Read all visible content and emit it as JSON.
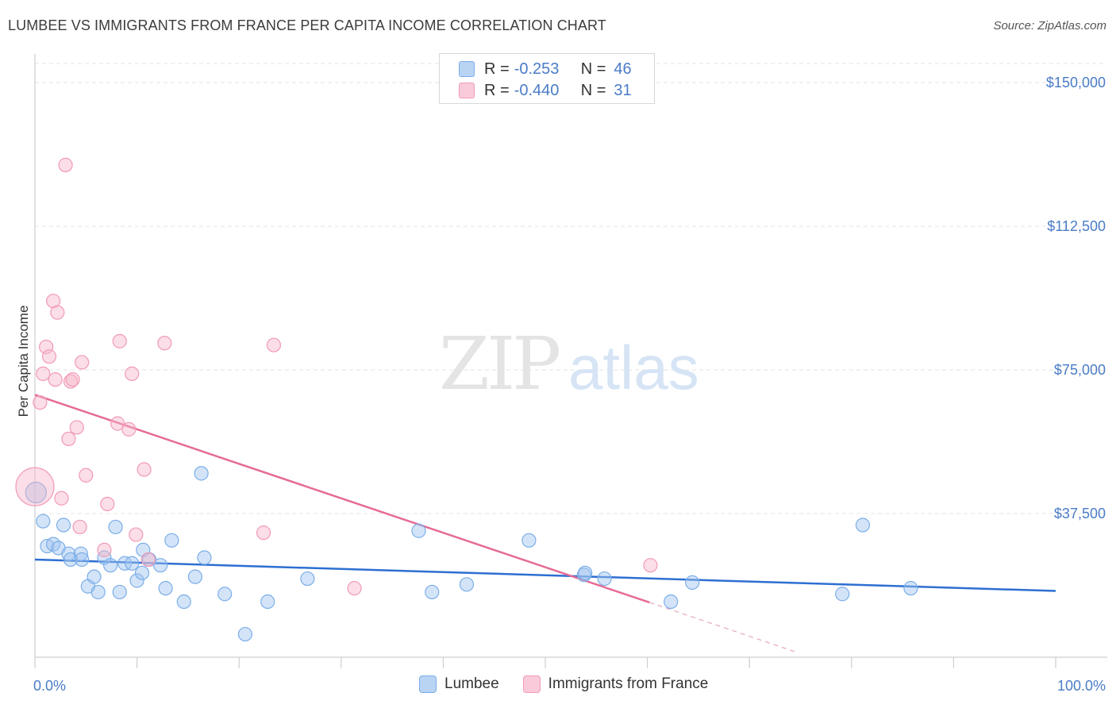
{
  "title": "LUMBEE VS IMMIGRANTS FROM FRANCE PER CAPITA INCOME CORRELATION CHART",
  "source": "Source: ZipAtlas.com",
  "watermark": {
    "zip": "ZIP",
    "atlas": "atlas"
  },
  "colors": {
    "blue": "#7aaee8",
    "blue_fill": "rgba(160,196,240,0.45)",
    "blue_line": "#2d6fd1",
    "pink": "#f19ab6",
    "pink_fill": "rgba(246,182,202,0.45)",
    "pink_line": "#e56b96",
    "tick_text": "#4a7cc7"
  },
  "legend_top": [
    {
      "r_label": "R =",
      "r_value": "-0.253",
      "n_label": "N =",
      "n_value": "46"
    },
    {
      "r_label": "R =",
      "r_value": "-0.440",
      "n_label": "N =",
      "n_value": "31"
    }
  ],
  "legend_bottom": [
    {
      "label": "Lumbee"
    },
    {
      "label": "Immigrants from France"
    }
  ],
  "chart_data": {
    "type": "scatter",
    "title": "LUMBEE VS IMMIGRANTS FROM FRANCE PER CAPITA INCOME CORRELATION CHART",
    "xlabel": "",
    "ylabel": "Per Capita Income",
    "xlim": [
      0,
      100
    ],
    "ylim": [
      0,
      155000
    ],
    "x_tick_labels": [
      "0.0%",
      "100.0%"
    ],
    "y_ticks": [
      37500,
      75000,
      112500,
      150000
    ],
    "y_tick_labels": [
      "$37,500",
      "$75,000",
      "$112,500",
      "$150,000"
    ],
    "grid": "horizontal dashed",
    "series": [
      {
        "name": "Lumbee",
        "points": [
          [
            0.1,
            43000
          ],
          [
            0.8,
            35500
          ],
          [
            1.2,
            29000
          ],
          [
            1.8,
            29500
          ],
          [
            2.3,
            28500
          ],
          [
            2.8,
            34500
          ],
          [
            3.3,
            27000
          ],
          [
            3.5,
            25500
          ],
          [
            4.5,
            27000
          ],
          [
            4.6,
            25500
          ],
          [
            5.2,
            18500
          ],
          [
            5.8,
            21000
          ],
          [
            6.2,
            17000
          ],
          [
            6.8,
            26000
          ],
          [
            7.4,
            24000
          ],
          [
            7.9,
            34000
          ],
          [
            8.3,
            17000
          ],
          [
            8.8,
            24500
          ],
          [
            9.5,
            24500
          ],
          [
            10.0,
            20000
          ],
          [
            10.5,
            22000
          ],
          [
            10.6,
            28000
          ],
          [
            11.2,
            25500
          ],
          [
            12.3,
            24000
          ],
          [
            12.8,
            18000
          ],
          [
            13.4,
            30500
          ],
          [
            14.6,
            14500
          ],
          [
            15.7,
            21000
          ],
          [
            16.3,
            48000
          ],
          [
            16.6,
            26000
          ],
          [
            18.6,
            16500
          ],
          [
            20.6,
            6000
          ],
          [
            22.8,
            14500
          ],
          [
            26.7,
            20500
          ],
          [
            37.6,
            33000
          ],
          [
            38.9,
            17000
          ],
          [
            42.3,
            19000
          ],
          [
            48.4,
            30500
          ],
          [
            53.8,
            21500
          ],
          [
            53.9,
            22000
          ],
          [
            55.8,
            20500
          ],
          [
            62.3,
            14500
          ],
          [
            64.4,
            19500
          ],
          [
            79.1,
            16500
          ],
          [
            81.1,
            34500
          ],
          [
            85.8,
            18000
          ]
        ],
        "trend": {
          "x": [
            0,
            100
          ],
          "y": [
            25500,
            17300
          ]
        }
      },
      {
        "name": "Immigrants from France",
        "points": [
          [
            0.0,
            44500
          ],
          [
            0.5,
            66500
          ],
          [
            0.8,
            74000
          ],
          [
            1.1,
            81000
          ],
          [
            1.4,
            78500
          ],
          [
            1.8,
            93000
          ],
          [
            2.0,
            72500
          ],
          [
            2.2,
            90000
          ],
          [
            2.6,
            41500
          ],
          [
            3.0,
            128500
          ],
          [
            3.3,
            57000
          ],
          [
            3.5,
            72000
          ],
          [
            3.7,
            72500
          ],
          [
            4.1,
            60000
          ],
          [
            4.4,
            34000
          ],
          [
            4.6,
            77000
          ],
          [
            5.0,
            47500
          ],
          [
            6.8,
            28000
          ],
          [
            7.1,
            40000
          ],
          [
            8.1,
            61000
          ],
          [
            8.3,
            82500
          ],
          [
            9.2,
            59500
          ],
          [
            9.5,
            74000
          ],
          [
            9.9,
            32000
          ],
          [
            10.7,
            49000
          ],
          [
            11.1,
            25500
          ],
          [
            12.7,
            82000
          ],
          [
            22.4,
            32500
          ],
          [
            23.4,
            81500
          ],
          [
            31.3,
            18000
          ],
          [
            60.3,
            24000
          ]
        ],
        "trend": {
          "x": [
            0,
            60.2
          ],
          "y": [
            68500,
            14300
          ]
        },
        "trend_dashed": {
          "x": [
            60.2,
            74.4
          ],
          "y": [
            14300,
            1500
          ]
        }
      }
    ]
  }
}
